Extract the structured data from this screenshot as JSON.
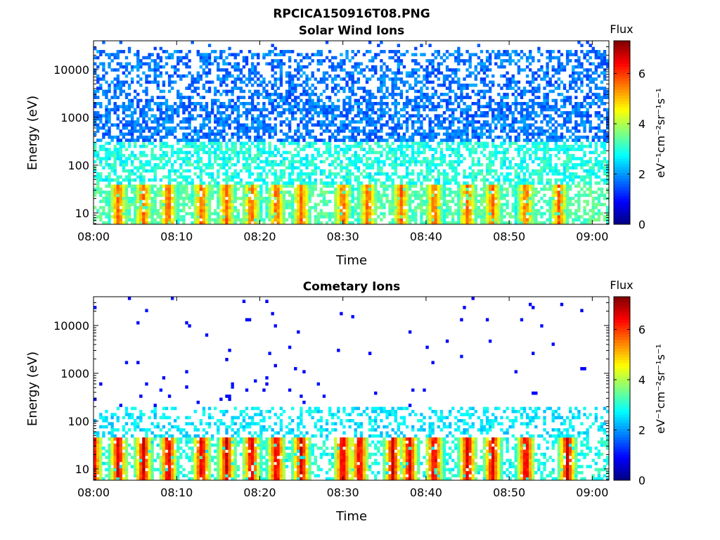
{
  "figure_title": "RPCICA150916T08.PNG",
  "chart_data": [
    {
      "type": "heatmap",
      "title": "Solar Wind Ions",
      "xlabel": "Time",
      "ylabel": "Energy (eV)",
      "y_scale": "log",
      "ylim": [
        5.8,
        40000
      ],
      "xlim": [
        "08:00",
        "09:02"
      ],
      "x_ticks": [
        "08:00",
        "08:10",
        "08:20",
        "08:30",
        "08:40",
        "08:50",
        "09:00"
      ],
      "y_ticks": [
        10,
        100,
        1000,
        10000
      ],
      "y_tick_labels": [
        "10",
        "100",
        "1000",
        "10000"
      ],
      "colorbar": {
        "title": "Flux",
        "label": "eV⁻¹cm⁻²sr⁻¹s⁻¹",
        "range": [
          0,
          7.3
        ],
        "ticks": [
          0,
          2,
          4,
          6
        ],
        "tick_labels": [
          "0",
          "2",
          "4",
          "6"
        ],
        "colormap": "jet"
      },
      "band_peak_times": [
        "08:03",
        "08:06",
        "08:09",
        "08:13",
        "08:16",
        "08:19",
        "08:22",
        "08:25",
        "08:30",
        "08:33",
        "08:37",
        "08:41",
        "08:45",
        "08:48",
        "08:52",
        "08:56"
      ],
      "band_energy_ev": [
        6,
        40
      ],
      "band_peak_flux": 5.8,
      "background_flux": 1.3,
      "grid": false
    },
    {
      "type": "heatmap",
      "title": "Cometary Ions",
      "xlabel": "Time",
      "ylabel": "Energy (eV)",
      "y_scale": "log",
      "ylim": [
        5.8,
        40000
      ],
      "xlim": [
        "08:00",
        "09:02"
      ],
      "x_ticks": [
        "08:00",
        "08:10",
        "08:20",
        "08:30",
        "08:40",
        "08:50",
        "09:00"
      ],
      "y_ticks": [
        10,
        100,
        1000,
        10000
      ],
      "y_tick_labels": [
        "10",
        "100",
        "1000",
        "10000"
      ],
      "colorbar": {
        "title": "Flux",
        "label": "eV⁻¹cm⁻²sr⁻¹s⁻¹",
        "range": [
          0,
          7.3
        ],
        "ticks": [
          0,
          2,
          4,
          6
        ],
        "tick_labels": [
          "0",
          "2",
          "4",
          "6"
        ],
        "colormap": "jet"
      },
      "band_peak_times": [
        "08:00",
        "08:03",
        "08:06",
        "08:09",
        "08:13",
        "08:16",
        "08:19",
        "08:22",
        "08:25",
        "08:30",
        "08:32",
        "08:36",
        "08:38",
        "08:41",
        "08:45",
        "08:48",
        "08:52",
        "08:57"
      ],
      "band_energy_ev": [
        6,
        45
      ],
      "band_peak_flux": 6.8,
      "background_flux": 0.8,
      "grid": false
    }
  ]
}
